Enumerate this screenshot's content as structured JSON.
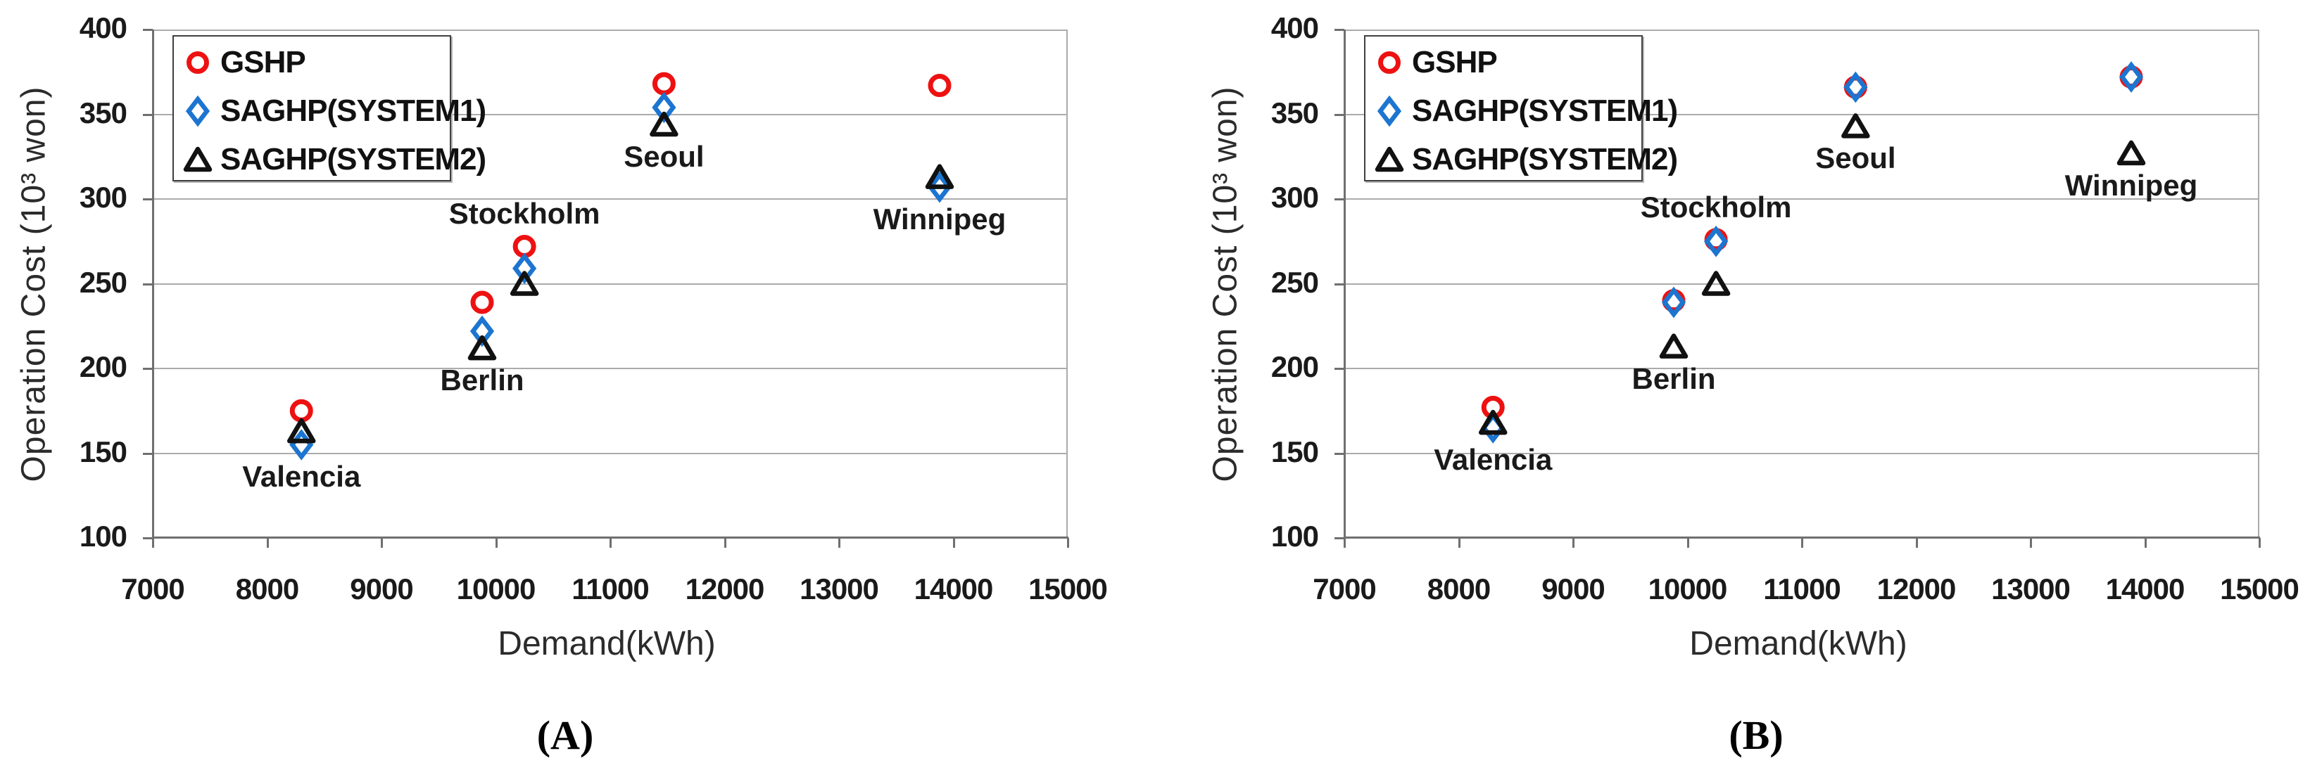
{
  "figure": {
    "background": "#FFFFFF",
    "text_color": "#1A1A1A",
    "grid_color": "#ABABAB",
    "axis_color": "#6F6F6F"
  },
  "chart_data": [
    {
      "type": "scatter",
      "panel_caption": "(A)",
      "xlabel": "Demand(kWh)",
      "ylabel": "Operation Cost (10³ won)",
      "xlim": [
        7000,
        15000
      ],
      "ylim": [
        100,
        400
      ],
      "x_ticks": [
        7000,
        8000,
        9000,
        10000,
        11000,
        12000,
        13000,
        14000,
        15000
      ],
      "y_ticks": [
        100,
        150,
        200,
        250,
        300,
        350,
        400
      ],
      "grid": "horizontal",
      "legend_position": "top-left",
      "categories": [
        "Valencia",
        "Berlin",
        "Stockholm",
        "Seoul",
        "Winnipeg"
      ],
      "x": [
        8300,
        9880,
        10250,
        11470,
        13880
      ],
      "city_label_placement": [
        "below",
        "below",
        "above",
        "below",
        "below"
      ],
      "series": [
        {
          "name": "GSHP",
          "marker": "circle",
          "color": "#EE1111",
          "values": [
            175,
            239,
            272,
            368,
            367
          ]
        },
        {
          "name": "SAGHP(SYSTEM1)",
          "marker": "diamond",
          "color": "#1C75D0",
          "values": [
            155,
            222,
            259,
            354,
            307
          ]
        },
        {
          "name": "SAGHP(SYSTEM2)",
          "marker": "triangle",
          "color": "#111111",
          "values": [
            163,
            212,
            250,
            344,
            313
          ]
        }
      ]
    },
    {
      "type": "scatter",
      "panel_caption": "(B)",
      "xlabel": "Demand(kWh)",
      "ylabel": "Operation Cost (10³ won)",
      "xlim": [
        7000,
        15000
      ],
      "ylim": [
        100,
        400
      ],
      "x_ticks": [
        7000,
        8000,
        9000,
        10000,
        11000,
        12000,
        13000,
        14000,
        15000
      ],
      "y_ticks": [
        100,
        150,
        200,
        250,
        300,
        350,
        400
      ],
      "grid": "horizontal",
      "legend_position": "top-left",
      "categories": [
        "Valencia",
        "Berlin",
        "Stockholm",
        "Seoul",
        "Winnipeg"
      ],
      "x": [
        8300,
        9880,
        10250,
        11470,
        13880
      ],
      "city_label_placement": [
        "below",
        "below",
        "above",
        "below",
        "below"
      ],
      "series": [
        {
          "name": "GSHP",
          "marker": "circle",
          "color": "#EE1111",
          "values": [
            177,
            240,
            276,
            366,
            372
          ]
        },
        {
          "name": "SAGHP(SYSTEM1)",
          "marker": "diamond",
          "color": "#1C75D0",
          "values": [
            165,
            239,
            275,
            366,
            372
          ]
        },
        {
          "name": "SAGHP(SYSTEM2)",
          "marker": "triangle",
          "color": "#111111",
          "values": [
            168,
            213,
            250,
            343,
            327
          ]
        }
      ]
    }
  ]
}
